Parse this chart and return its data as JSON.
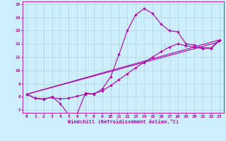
{
  "xlabel": "Windchill (Refroidissement éolien,°C)",
  "xlim": [
    -0.5,
    23.5
  ],
  "ylim": [
    6.8,
    15.2
  ],
  "xticks": [
    0,
    1,
    2,
    3,
    4,
    5,
    6,
    7,
    8,
    9,
    10,
    11,
    12,
    13,
    14,
    15,
    16,
    17,
    18,
    19,
    20,
    21,
    22,
    23
  ],
  "yticks": [
    7,
    8,
    9,
    10,
    11,
    12,
    13,
    14,
    15
  ],
  "bg_color": "#cceeff",
  "line_color": "#aa00aa",
  "grid_color": "#aacccc",
  "lines": [
    {
      "x": [
        0,
        1,
        2,
        3,
        4,
        5,
        6,
        7,
        8,
        9,
        10,
        11,
        12,
        13,
        14,
        15,
        16,
        17,
        18,
        19,
        20,
        21,
        22,
        23
      ],
      "y": [
        8.2,
        7.9,
        7.8,
        8.0,
        7.5,
        6.65,
        6.7,
        8.3,
        8.2,
        8.6,
        9.5,
        11.2,
        13.0,
        14.2,
        14.65,
        14.3,
        13.5,
        13.0,
        12.9,
        12.0,
        11.9,
        11.7,
        11.7,
        12.3
      ],
      "marker": true
    },
    {
      "x": [
        0,
        1,
        2,
        3,
        4,
        5,
        6,
        7,
        8,
        9,
        10,
        11,
        12,
        13,
        14,
        15,
        16,
        17,
        18,
        19,
        20,
        21,
        22,
        23
      ],
      "y": [
        8.2,
        7.9,
        7.85,
        7.95,
        7.85,
        7.9,
        8.05,
        8.2,
        8.25,
        8.45,
        8.85,
        9.3,
        9.75,
        10.2,
        10.6,
        11.0,
        11.4,
        11.75,
        12.0,
        11.85,
        11.75,
        11.65,
        11.65,
        12.25
      ],
      "marker": true
    },
    {
      "x": [
        0,
        23
      ],
      "y": [
        8.2,
        12.3
      ],
      "marker": false
    },
    {
      "x": [
        0,
        23
      ],
      "y": [
        8.2,
        12.15
      ],
      "marker": false
    }
  ]
}
